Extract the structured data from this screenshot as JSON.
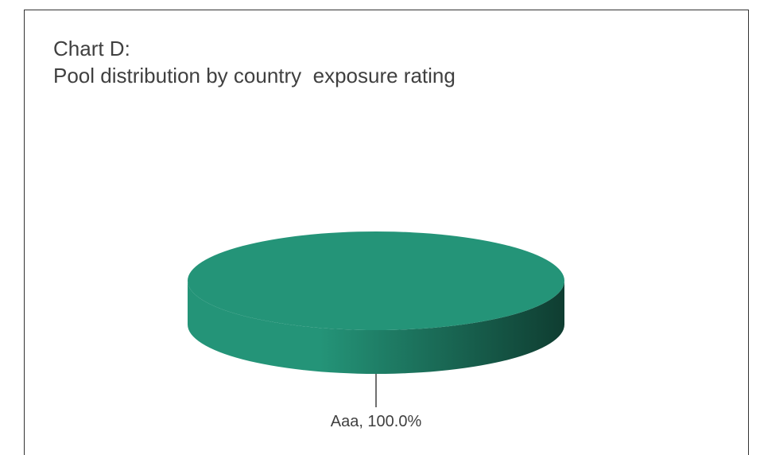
{
  "title_lines": [
    "Chart D:",
    "Pool distribution by country  exposure rating"
  ],
  "colors": {
    "slice_top": "#249478",
    "slice_side_light": "#249478",
    "slice_side_dark": "#0f3d31",
    "leader_line": "#404040",
    "frame": "#333333",
    "text": "#404040"
  },
  "chart_data": {
    "type": "pie",
    "title": "Chart D:\nPool distribution by country  exposure rating",
    "categories": [
      "Aaa"
    ],
    "values": [
      100.0
    ],
    "data_labels": [
      "Aaa, 100.0%"
    ],
    "style": "3d",
    "legend": "none"
  }
}
